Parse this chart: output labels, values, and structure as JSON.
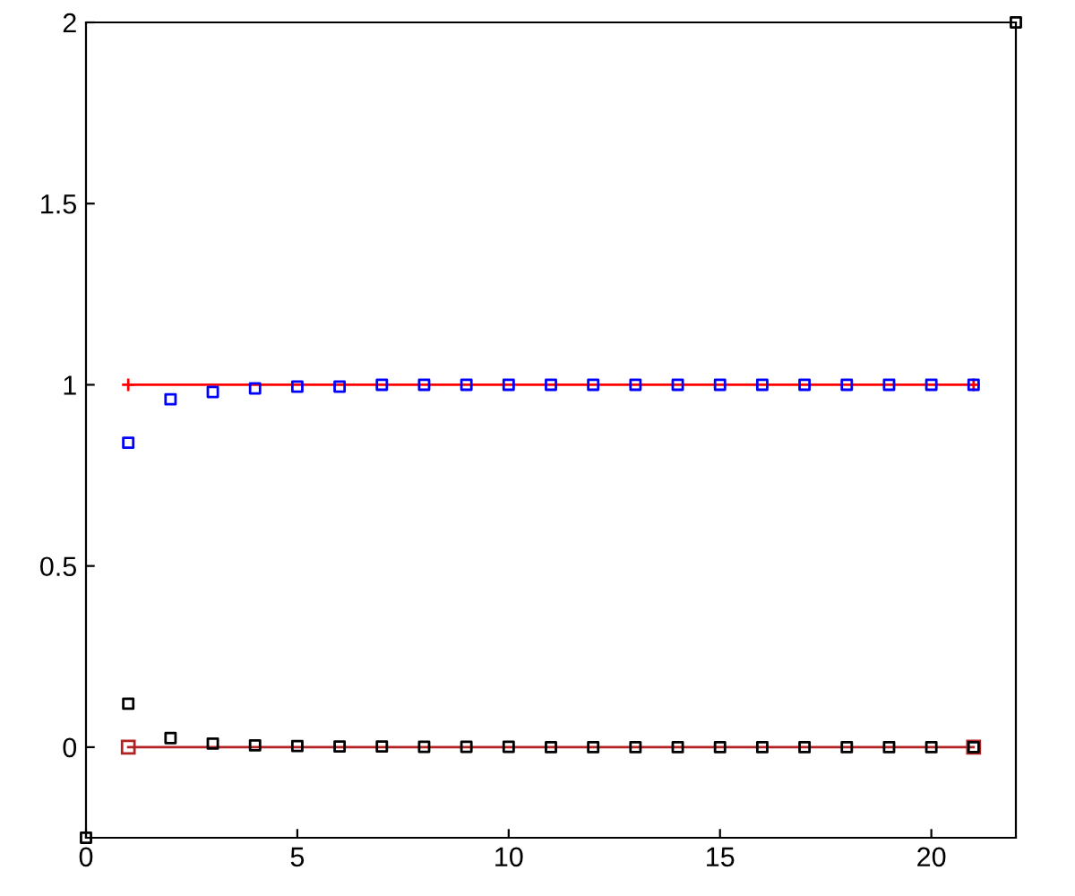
{
  "chart_data": {
    "type": "scatter",
    "xlim": [
      0,
      22
    ],
    "ylim": [
      -0.25,
      2
    ],
    "xticks": [
      0,
      5,
      10,
      15,
      20
    ],
    "yticks": [
      0,
      0.5,
      1,
      1.5,
      2
    ],
    "grid": false,
    "legend": false,
    "series": [
      {
        "type": "line",
        "color": "#ff0000",
        "marker": "cross",
        "x": [
          1,
          21
        ],
        "values": [
          1,
          1
        ]
      },
      {
        "type": "line",
        "color": "#b22222",
        "marker": "square",
        "x": [
          1,
          21
        ],
        "values": [
          0,
          0
        ]
      },
      {
        "color": "#0000ff",
        "marker": "square",
        "x": [
          1,
          2,
          3,
          4,
          5,
          6,
          7,
          8,
          9,
          10,
          11,
          12,
          13,
          14,
          15,
          16,
          17,
          18,
          19,
          20,
          21
        ],
        "values": [
          0.84,
          0.96,
          0.98,
          0.99,
          0.995,
          0.995,
          1,
          1,
          1,
          1,
          1,
          1,
          1,
          1,
          1,
          1,
          1,
          1,
          1,
          1,
          1
        ]
      },
      {
        "type": "scatter",
        "color": "#000000",
        "marker": "square",
        "x": [
          1,
          2,
          3,
          4,
          5,
          6,
          7,
          8,
          9,
          10,
          11,
          12,
          13,
          14,
          15,
          16,
          17,
          18,
          19,
          20,
          21
        ],
        "values": [
          0.12,
          0.025,
          0.01,
          0.005,
          0.003,
          0.002,
          0.002,
          0.001,
          0.001,
          0.001,
          0,
          0,
          0,
          0,
          0,
          0,
          0,
          0,
          0,
          0,
          0
        ]
      },
      {
        "color": "#000000",
        "marker": "square",
        "x": [
          0,
          22
        ],
        "values": [
          -0.25,
          2
        ]
      }
    ]
  }
}
